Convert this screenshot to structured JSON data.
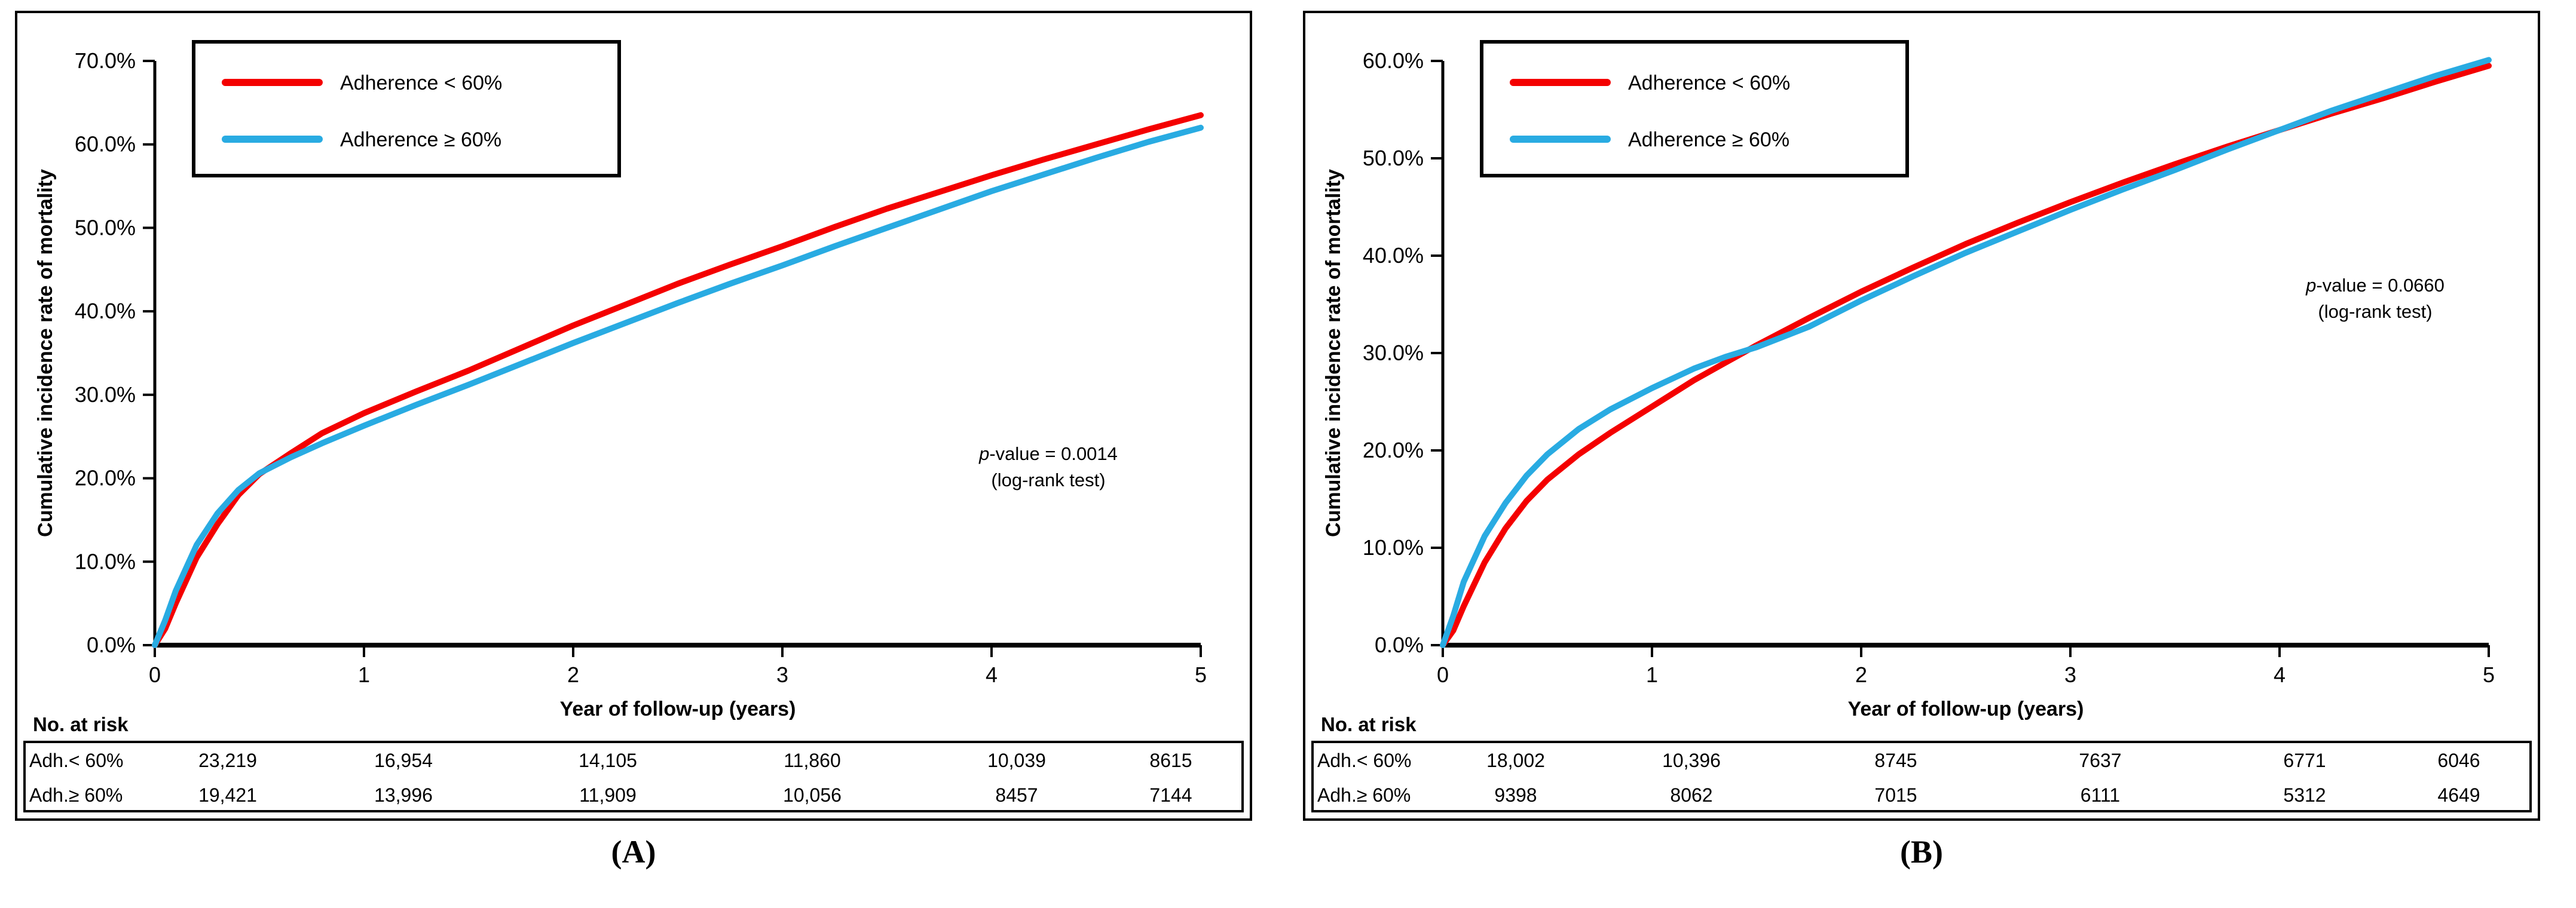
{
  "colors": {
    "adherence_lt60": "#f40000",
    "adherence_ge60": "#29abe2",
    "axis": "#000000",
    "background": "#ffffff"
  },
  "chart_data": [
    {
      "type": "line",
      "panel_label": "(A)",
      "xlabel": "Year of follow-up (years)",
      "ylabel": "Cumulative incidence rate of mortality",
      "xlim": [
        0,
        5
      ],
      "ylim": [
        0,
        70
      ],
      "grid": false,
      "legend_position": "top-left",
      "x_tick_labels": [
        "0",
        "1",
        "2",
        "3",
        "4",
        "5"
      ],
      "y_tick_labels": [
        "0.0%",
        "10.0%",
        "20.0%",
        "30.0%",
        "40.0%",
        "50.0%",
        "60.0%",
        "70.0%"
      ],
      "series": [
        {
          "name": "Adherence < 60%",
          "color_key": "adherence_lt60",
          "x": [
            0,
            0.05,
            0.1,
            0.2,
            0.3,
            0.4,
            0.5,
            0.65,
            0.8,
            1,
            1.25,
            1.5,
            1.75,
            2,
            2.25,
            2.5,
            2.75,
            3,
            3.25,
            3.5,
            3.75,
            4,
            4.25,
            4.5,
            4.75,
            5
          ],
          "y": [
            0,
            2,
            5,
            10.5,
            14.5,
            18,
            20.5,
            23,
            25.4,
            27.8,
            30.4,
            32.9,
            35.6,
            38.3,
            40.8,
            43.3,
            45.6,
            47.8,
            50.1,
            52.3,
            54.3,
            56.3,
            58.2,
            60,
            61.8,
            63.5
          ]
        },
        {
          "name": "Adherence ≥ 60%",
          "color_key": "adherence_ge60",
          "x": [
            0,
            0.05,
            0.1,
            0.2,
            0.3,
            0.4,
            0.5,
            0.65,
            0.8,
            1,
            1.25,
            1.5,
            1.75,
            2,
            2.25,
            2.5,
            2.75,
            3,
            3.25,
            3.5,
            3.75,
            4,
            4.25,
            4.5,
            4.75,
            5
          ],
          "y": [
            0,
            3,
            6.5,
            12,
            15.8,
            18.6,
            20.6,
            22.5,
            24.2,
            26.3,
            28.8,
            31.2,
            33.7,
            36.2,
            38.6,
            41,
            43.3,
            45.5,
            47.8,
            50,
            52.2,
            54.4,
            56.4,
            58.4,
            60.3,
            62
          ]
        }
      ],
      "annotation": {
        "p_italic": "p",
        "text": "-value = 0.0014",
        "line2": "(log-rank test)"
      },
      "no_at_risk": {
        "header": "No. at risk",
        "rows": [
          {
            "label": "Adh.< 60%",
            "values": [
              "23,219",
              "16,954",
              "14,105",
              "11,860",
              "10,039",
              "8615"
            ]
          },
          {
            "label": "Adh.≥ 60%",
            "values": [
              "19,421",
              "13,996",
              "11,909",
              "10,056",
              "8457",
              "7144"
            ]
          }
        ]
      }
    },
    {
      "type": "line",
      "panel_label": "(B)",
      "xlabel": "Year of follow-up (years)",
      "ylabel": "Cumulative incidence rate of mortality",
      "xlim": [
        0,
        5
      ],
      "ylim": [
        0,
        60
      ],
      "grid": false,
      "legend_position": "top-left",
      "x_tick_labels": [
        "0",
        "1",
        "2",
        "3",
        "4",
        "5"
      ],
      "y_tick_labels": [
        "0.0%",
        "10.0%",
        "20.0%",
        "30.0%",
        "40.0%",
        "50.0%",
        "60.0%"
      ],
      "series": [
        {
          "name": "Adherence < 60%",
          "color_key": "adherence_lt60",
          "x": [
            0,
            0.05,
            0.1,
            0.2,
            0.3,
            0.4,
            0.5,
            0.65,
            0.8,
            1,
            1.2,
            1.35,
            1.5,
            1.75,
            2,
            2.25,
            2.5,
            2.75,
            3,
            3.25,
            3.5,
            3.75,
            4,
            4.25,
            4.5,
            4.75,
            5
          ],
          "y": [
            0,
            1.5,
            4,
            8.5,
            12,
            14.8,
            17,
            19.6,
            21.8,
            24.5,
            27.2,
            29,
            30.8,
            33.6,
            36.3,
            38.8,
            41.2,
            43.4,
            45.5,
            47.5,
            49.4,
            51.2,
            52.9,
            54.6,
            56.2,
            57.9,
            59.5
          ]
        },
        {
          "name": "Adherence ≥ 60%",
          "color_key": "adherence_ge60",
          "x": [
            0,
            0.05,
            0.1,
            0.2,
            0.3,
            0.4,
            0.5,
            0.65,
            0.8,
            1,
            1.2,
            1.35,
            1.5,
            1.75,
            2,
            2.25,
            2.5,
            2.75,
            3,
            3.25,
            3.5,
            3.75,
            4,
            4.25,
            4.5,
            4.75,
            5
          ],
          "y": [
            0,
            3,
            6.5,
            11.2,
            14.6,
            17.4,
            19.6,
            22.2,
            24.2,
            26.4,
            28.4,
            29.6,
            30.6,
            32.7,
            35.4,
            37.9,
            40.3,
            42.5,
            44.7,
            46.8,
            48.8,
            50.9,
            52.9,
            54.9,
            56.7,
            58.5,
            60.1
          ]
        }
      ],
      "annotation": {
        "p_italic": "p",
        "text": "-value = 0.0660",
        "line2": "(log-rank test)"
      },
      "no_at_risk": {
        "header": "No. at risk",
        "rows": [
          {
            "label": "Adh.< 60%",
            "values": [
              "18,002",
              "10,396",
              "8745",
              "7637",
              "6771",
              "6046"
            ]
          },
          {
            "label": "Adh.≥ 60%",
            "values": [
              "9398",
              "8062",
              "7015",
              "6111",
              "5312",
              "4649"
            ]
          }
        ]
      }
    }
  ]
}
